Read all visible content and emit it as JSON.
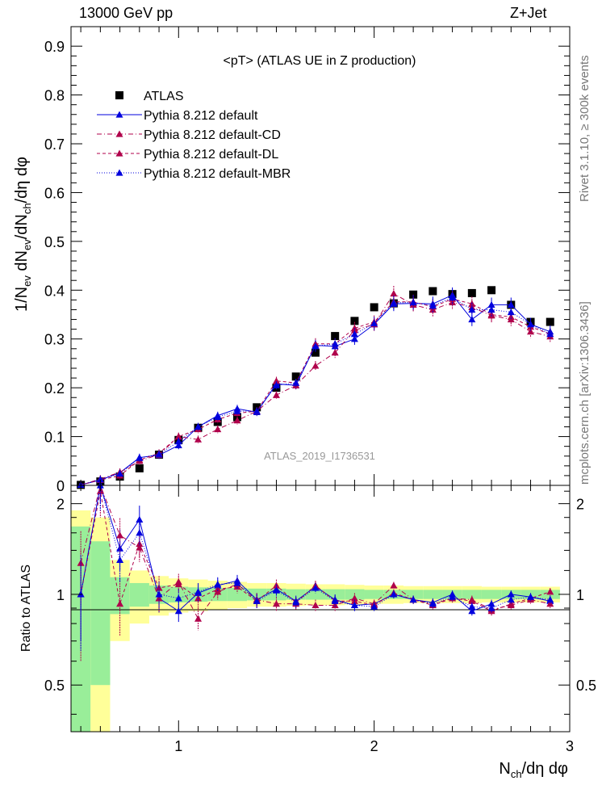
{
  "header": {
    "left": "13000 GeV pp",
    "right": "Z+Jet"
  },
  "side_label_top": "Rivet 3.1.10, ≥ 300k events",
  "side_label_bottom": "mcplots.cern.ch [arXiv:1306.3436]",
  "watermark": "ATLAS_2019_I1736531",
  "colors": {
    "atlas": "#000000",
    "default": "#0000dd",
    "variants": "#b0004b",
    "band_inner": "#99ee99",
    "band_outer": "#ffff99"
  },
  "chart_data": [
    {
      "type": "scatter",
      "title": "<pT> (ATLAS UE in Z production)",
      "ylabel": "1/N_ev dN_ev/dN_ch/dη dφ",
      "xlabel": "N_ch/dη dφ",
      "xlim": [
        0.45,
        3.0
      ],
      "ylim": [
        0,
        0.94
      ],
      "y_ticks": [
        "0",
        "0.1",
        "0.2",
        "0.3",
        "0.4",
        "0.5",
        "0.6",
        "0.7",
        "0.8",
        "0.9"
      ],
      "legend_position": "top-left",
      "x": [
        0.5,
        0.6,
        0.7,
        0.8,
        0.9,
        1.0,
        1.1,
        1.2,
        1.3,
        1.4,
        1.5,
        1.6,
        1.7,
        1.8,
        1.9,
        2.0,
        2.1,
        2.2,
        2.3,
        2.4,
        2.5,
        2.6,
        2.7,
        2.8,
        2.9
      ],
      "series": [
        {
          "name": "ATLAS",
          "marker": "square",
          "values": [
            0.001,
            0.008,
            0.018,
            0.035,
            0.063,
            0.093,
            0.118,
            0.13,
            0.14,
            0.16,
            0.2,
            0.223,
            0.272,
            0.306,
            0.337,
            0.365,
            0.373,
            0.391,
            0.398,
            0.392,
            0.394,
            0.4,
            0.37,
            0.335,
            0.335
          ]
        },
        {
          "name": "Pythia 8.212 default",
          "line": "solid",
          "values": [
            0.001,
            0.011,
            0.026,
            0.057,
            0.062,
            0.082,
            0.12,
            0.143,
            0.157,
            0.15,
            0.208,
            0.205,
            0.287,
            0.285,
            0.3,
            0.33,
            0.372,
            0.373,
            0.372,
            0.39,
            0.34,
            0.37,
            0.37,
            0.33,
            0.315
          ]
        },
        {
          "name": "Pythia 8.212 default-CD",
          "line": "dashdot",
          "values": [
            0.001,
            0.013,
            0.027,
            0.05,
            0.063,
            0.1,
            0.094,
            0.115,
            0.133,
            0.152,
            0.185,
            0.205,
            0.245,
            0.272,
            0.318,
            0.33,
            0.393,
            0.37,
            0.36,
            0.375,
            0.365,
            0.348,
            0.34,
            0.315,
            0.305
          ]
        },
        {
          "name": "Pythia 8.212 default-DL",
          "line": "dashed",
          "values": [
            0.001,
            0.011,
            0.02,
            0.052,
            0.066,
            0.1,
            0.115,
            0.135,
            0.148,
            0.152,
            0.214,
            0.21,
            0.29,
            0.29,
            0.322,
            0.335,
            0.376,
            0.376,
            0.366,
            0.382,
            0.372,
            0.35,
            0.345,
            0.325,
            0.31
          ]
        },
        {
          "name": "Pythia 8.212 default-MBR",
          "line": "dotted",
          "values": [
            0.001,
            0.012,
            0.024,
            0.056,
            0.064,
            0.09,
            0.12,
            0.14,
            0.152,
            0.152,
            0.205,
            0.21,
            0.285,
            0.29,
            0.31,
            0.332,
            0.374,
            0.375,
            0.368,
            0.385,
            0.36,
            0.36,
            0.355,
            0.33,
            0.31
          ]
        }
      ]
    },
    {
      "type": "scatter",
      "ylabel": "Ratio to ATLAS",
      "xlabel": "N_ch/dη dφ",
      "xlim": [
        0.45,
        3.0
      ],
      "ylim": [
        0.35,
        2.3
      ],
      "y_log": true,
      "x_ticks": [
        "1",
        "2",
        "3"
      ],
      "y_ticks": [
        "0.5",
        "1",
        "2"
      ],
      "x": [
        0.5,
        0.6,
        0.7,
        0.8,
        0.9,
        1.0,
        1.1,
        1.2,
        1.3,
        1.4,
        1.5,
        1.6,
        1.7,
        1.8,
        1.9,
        2.0,
        2.1,
        2.2,
        2.3,
        2.4,
        2.5,
        2.6,
        2.7,
        2.8,
        2.9
      ],
      "band_inner_halfwidth": [
        0.68,
        0.5,
        0.14,
        0.09,
        0.07,
        0.06,
        0.055,
        0.05,
        0.05,
        0.045,
        0.045,
        0.04,
        0.04,
        0.04,
        0.04,
        0.035,
        0.035,
        0.035,
        0.035,
        0.035,
        0.035,
        0.035,
        0.035,
        0.035,
        0.035
      ],
      "band_outer_halfwidth": [
        0.9,
        0.8,
        0.3,
        0.2,
        0.15,
        0.13,
        0.12,
        0.11,
        0.1,
        0.09,
        0.09,
        0.085,
        0.08,
        0.08,
        0.075,
        0.07,
        0.07,
        0.065,
        0.065,
        0.065,
        0.065,
        0.06,
        0.06,
        0.06,
        0.06
      ],
      "series": [
        {
          "name": "Pythia 8.212 default",
          "values": [
            1.0,
            2.4,
            1.42,
            1.77,
            0.97,
            0.88,
            1.01,
            1.07,
            1.11,
            0.96,
            1.04,
            0.95,
            1.06,
            0.96,
            0.92,
            0.93,
            1.0,
            0.96,
            0.94,
            1.0,
            0.88,
            0.93,
            1.0,
            0.98,
            0.95
          ],
          "errors": [
            0.3,
            0.4,
            0.22,
            0.2,
            0.1,
            0.07,
            0.07,
            0.06,
            0.05,
            0.05,
            0.05,
            0.04,
            0.04,
            0.04,
            0.04,
            0.03,
            0.03,
            0.03,
            0.03,
            0.03,
            0.03,
            0.03,
            0.03,
            0.03,
            0.03
          ]
        },
        {
          "name": "Pythia 8.212 default-CD",
          "values": [
            1.27,
            2.5,
            1.57,
            1.43,
            0.97,
            1.1,
            0.83,
            1.02,
            1.08,
            0.96,
            0.93,
            0.93,
            0.92,
            0.92,
            0.97,
            0.93,
            1.07,
            0.96,
            0.93,
            0.97,
            0.96,
            0.89,
            0.92,
            0.96,
            0.93
          ],
          "errors": [
            0.35,
            0.4,
            0.22,
            0.15,
            0.1,
            0.07,
            0.07,
            0.06,
            0.05,
            0.05,
            0.05,
            0.04,
            0.04,
            0.04,
            0.04,
            0.03,
            0.03,
            0.03,
            0.03,
            0.03,
            0.03,
            0.03,
            0.03,
            0.03,
            0.03
          ]
        },
        {
          "name": "Pythia 8.212 default-DL",
          "values": [
            1.0,
            2.2,
            0.93,
            1.47,
            1.05,
            1.08,
            0.97,
            1.04,
            1.06,
            0.95,
            1.07,
            0.94,
            1.07,
            0.95,
            0.95,
            0.92,
            1.01,
            0.96,
            0.92,
            0.97,
            0.95,
            0.88,
            0.93,
            0.97,
            1.02
          ],
          "errors": [
            0.4,
            0.4,
            0.2,
            0.15,
            0.1,
            0.07,
            0.07,
            0.06,
            0.05,
            0.05,
            0.05,
            0.04,
            0.04,
            0.04,
            0.04,
            0.03,
            0.03,
            0.03,
            0.03,
            0.03,
            0.03,
            0.03,
            0.03,
            0.03,
            0.03
          ]
        },
        {
          "name": "Pythia 8.212 default-MBR",
          "values": [
            1.0,
            2.3,
            1.3,
            1.6,
            1.0,
            0.97,
            1.02,
            1.08,
            1.09,
            0.95,
            1.03,
            0.94,
            1.05,
            0.95,
            0.92,
            0.91,
            1.0,
            0.96,
            0.93,
            0.98,
            0.91,
            0.9,
            0.96,
            0.98,
            0.96
          ],
          "errors": [
            0.35,
            0.4,
            0.2,
            0.15,
            0.1,
            0.07,
            0.07,
            0.06,
            0.05,
            0.05,
            0.05,
            0.04,
            0.04,
            0.04,
            0.04,
            0.03,
            0.03,
            0.03,
            0.03,
            0.03,
            0.03,
            0.03,
            0.03,
            0.03,
            0.03
          ]
        }
      ]
    }
  ]
}
